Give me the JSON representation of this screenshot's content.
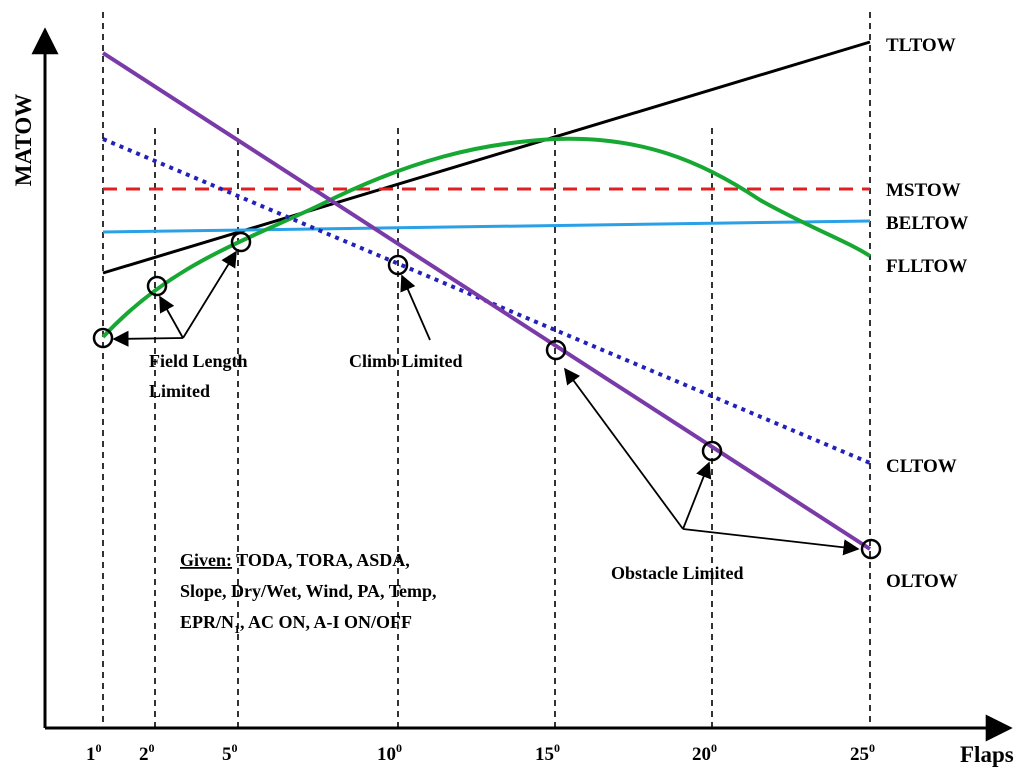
{
  "axes": {
    "x_label": "Flaps",
    "y_label": "MATOW",
    "ticks": [
      {
        "base": "1",
        "sup": "0"
      },
      {
        "base": "2",
        "sup": "0"
      },
      {
        "base": "5",
        "sup": "0"
      },
      {
        "base": "10",
        "sup": "0"
      },
      {
        "base": "15",
        "sup": "0"
      },
      {
        "base": "20",
        "sup": "0"
      },
      {
        "base": "25",
        "sup": "0"
      }
    ]
  },
  "curves": {
    "tltow": {
      "label": "TLTOW",
      "color": "#000000"
    },
    "mstow": {
      "label": "MSTOW",
      "color": "#e02020"
    },
    "beltow": {
      "label": "BELTOW",
      "color": "#2aa0e6"
    },
    "flltow": {
      "label": "FLLTOW",
      "color": "#16a832"
    },
    "cltow": {
      "label": "CLTOW",
      "color": "#2222bb"
    },
    "oltow": {
      "label": "OLTOW",
      "color": "#7a3aa8"
    }
  },
  "annotations": {
    "field_length_line1": "Field Length",
    "field_length_line2": "Limited",
    "climb_limited": "Climb Limited",
    "obstacle_limited": "Obstacle Limited"
  },
  "given": {
    "heading": "Given:",
    "line1_rest": " TODA, TORA, ASDA,",
    "line2": "Slope, Dry/Wet, Wind, PA, Temp,",
    "line3_a": "EPR/N",
    "line3_sub": "1",
    "line3_b": ", AC ON, A-I ON/OFF"
  }
}
